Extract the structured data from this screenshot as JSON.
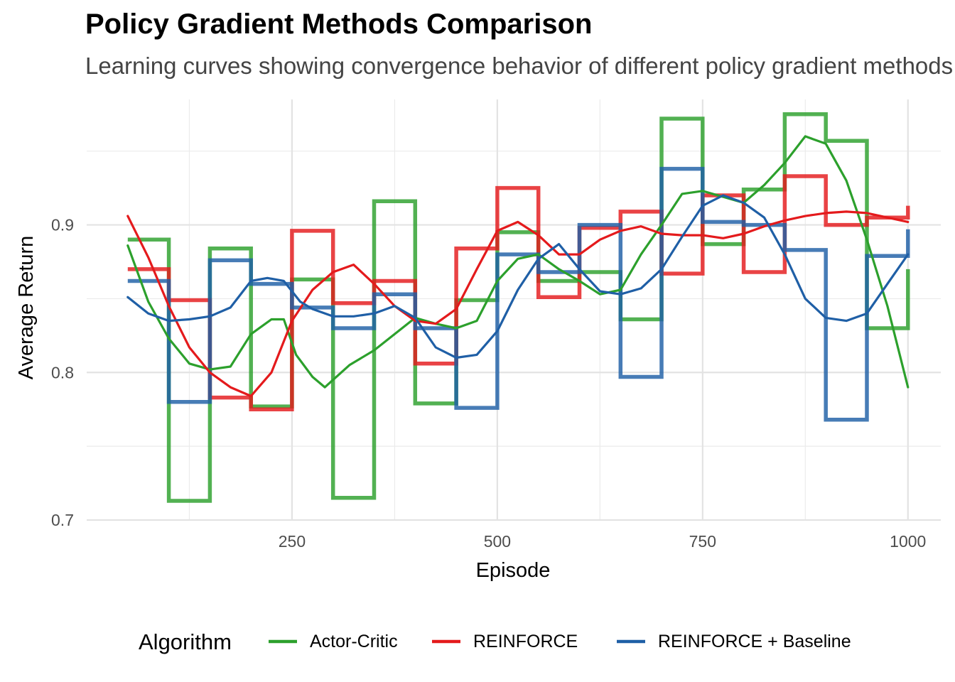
{
  "chart_data": {
    "type": "line",
    "title": "Policy Gradient Methods Comparison",
    "subtitle": "Learning curves showing convergence behavior of different policy gradient methods",
    "xlabel": "Episode",
    "ylabel": "Average Return",
    "xlim": [
      0,
      1040
    ],
    "ylim": [
      0.7,
      0.985
    ],
    "x_ticks": [
      250,
      500,
      750,
      1000
    ],
    "x_tick_labels": [
      "250",
      "500",
      "750",
      "1000"
    ],
    "y_ticks": [
      0.7,
      0.8,
      0.9
    ],
    "y_tick_labels": [
      "0.7",
      "0.8",
      "0.9"
    ],
    "grid": true,
    "legend": {
      "title": "Algorithm",
      "position": "bottom",
      "entries": [
        "Actor-Critic",
        "REINFORCE",
        "REINFORCE + Baseline"
      ]
    },
    "x": [
      50,
      100,
      150,
      200,
      250,
      300,
      350,
      400,
      450,
      500,
      550,
      600,
      650,
      700,
      750,
      800,
      850,
      900,
      950,
      1000
    ],
    "series": [
      {
        "name": "Actor-Critic",
        "color": "#2ca02c",
        "values": [
          0.89,
          0.713,
          0.884,
          0.777,
          0.863,
          0.715,
          0.916,
          0.779,
          0.849,
          0.895,
          0.862,
          0.868,
          0.836,
          0.972,
          0.887,
          0.924,
          0.975,
          0.957,
          0.83,
          0.87
        ],
        "smooth_x": [
          50,
          75,
          100,
          125,
          150,
          175,
          200,
          225,
          240,
          255,
          275,
          290,
          300,
          320,
          350,
          375,
          400,
          425,
          450,
          475,
          500,
          525,
          550,
          575,
          600,
          625,
          650,
          675,
          700,
          725,
          750,
          775,
          800,
          825,
          850,
          875,
          900,
          925,
          950,
          975,
          1000
        ],
        "smooth_values": [
          0.886,
          0.848,
          0.823,
          0.806,
          0.802,
          0.804,
          0.826,
          0.836,
          0.836,
          0.812,
          0.797,
          0.79,
          0.795,
          0.805,
          0.815,
          0.826,
          0.837,
          0.833,
          0.83,
          0.835,
          0.862,
          0.877,
          0.88,
          0.87,
          0.862,
          0.853,
          0.856,
          0.88,
          0.9,
          0.921,
          0.923,
          0.919,
          0.915,
          0.927,
          0.942,
          0.96,
          0.955,
          0.93,
          0.89,
          0.845,
          0.79
        ]
      },
      {
        "name": "REINFORCE",
        "color": "#e41a1c",
        "values": [
          0.87,
          0.849,
          0.783,
          0.775,
          0.896,
          0.847,
          0.862,
          0.806,
          0.884,
          0.925,
          0.851,
          0.898,
          0.909,
          0.867,
          0.92,
          0.868,
          0.933,
          0.9,
          0.905,
          0.913
        ],
        "smooth_x": [
          50,
          75,
          100,
          125,
          150,
          175,
          200,
          225,
          250,
          275,
          300,
          325,
          350,
          375,
          400,
          425,
          450,
          475,
          500,
          525,
          550,
          575,
          600,
          625,
          650,
          675,
          700,
          725,
          750,
          775,
          800,
          825,
          850,
          875,
          900,
          925,
          950,
          975,
          1000
        ],
        "smooth_values": [
          0.906,
          0.878,
          0.845,
          0.817,
          0.8,
          0.79,
          0.784,
          0.8,
          0.835,
          0.856,
          0.868,
          0.873,
          0.86,
          0.845,
          0.835,
          0.833,
          0.843,
          0.87,
          0.896,
          0.902,
          0.893,
          0.88,
          0.88,
          0.89,
          0.896,
          0.899,
          0.894,
          0.893,
          0.893,
          0.891,
          0.894,
          0.899,
          0.903,
          0.906,
          0.908,
          0.909,
          0.908,
          0.905,
          0.902
        ]
      },
      {
        "name": "REINFORCE + Baseline",
        "color": "#1f5fa6",
        "values": [
          0.862,
          0.78,
          0.876,
          0.86,
          0.844,
          0.83,
          0.853,
          0.83,
          0.776,
          0.88,
          0.868,
          0.9,
          0.797,
          0.938,
          0.902,
          0.9,
          0.883,
          0.768,
          0.879,
          0.897
        ],
        "smooth_x": [
          50,
          75,
          100,
          125,
          150,
          175,
          200,
          220,
          240,
          260,
          275,
          300,
          325,
          350,
          375,
          400,
          425,
          450,
          475,
          500,
          525,
          550,
          575,
          600,
          625,
          650,
          675,
          700,
          725,
          750,
          775,
          800,
          825,
          850,
          875,
          900,
          925,
          950,
          975,
          1000
        ],
        "smooth_values": [
          0.851,
          0.84,
          0.835,
          0.836,
          0.838,
          0.844,
          0.862,
          0.864,
          0.862,
          0.848,
          0.843,
          0.838,
          0.838,
          0.84,
          0.845,
          0.837,
          0.817,
          0.81,
          0.812,
          0.828,
          0.856,
          0.877,
          0.887,
          0.87,
          0.855,
          0.853,
          0.857,
          0.87,
          0.892,
          0.913,
          0.92,
          0.915,
          0.905,
          0.88,
          0.85,
          0.837,
          0.835,
          0.84,
          0.86,
          0.88
        ]
      }
    ]
  }
}
